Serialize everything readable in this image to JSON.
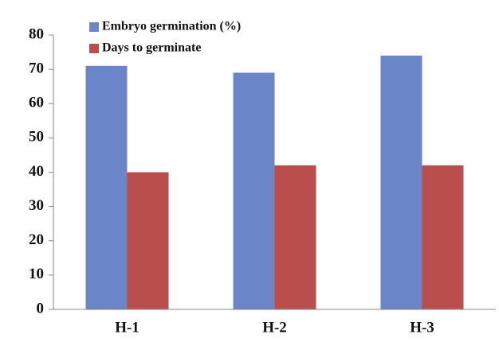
{
  "chart_data": {
    "type": "bar",
    "categories": [
      "H-1",
      "H-2",
      "H-3"
    ],
    "series": [
      {
        "name": "Embryo germination (%)",
        "color": "#6b85c9",
        "values": [
          71,
          69,
          74
        ]
      },
      {
        "name": "Days to germinate",
        "color": "#ba4e4c",
        "values": [
          40,
          42,
          42
        ]
      }
    ],
    "ylim": [
      0,
      80
    ],
    "yticks": [
      0,
      10,
      20,
      30,
      40,
      50,
      60,
      70,
      80
    ],
    "legend": "top-left"
  }
}
